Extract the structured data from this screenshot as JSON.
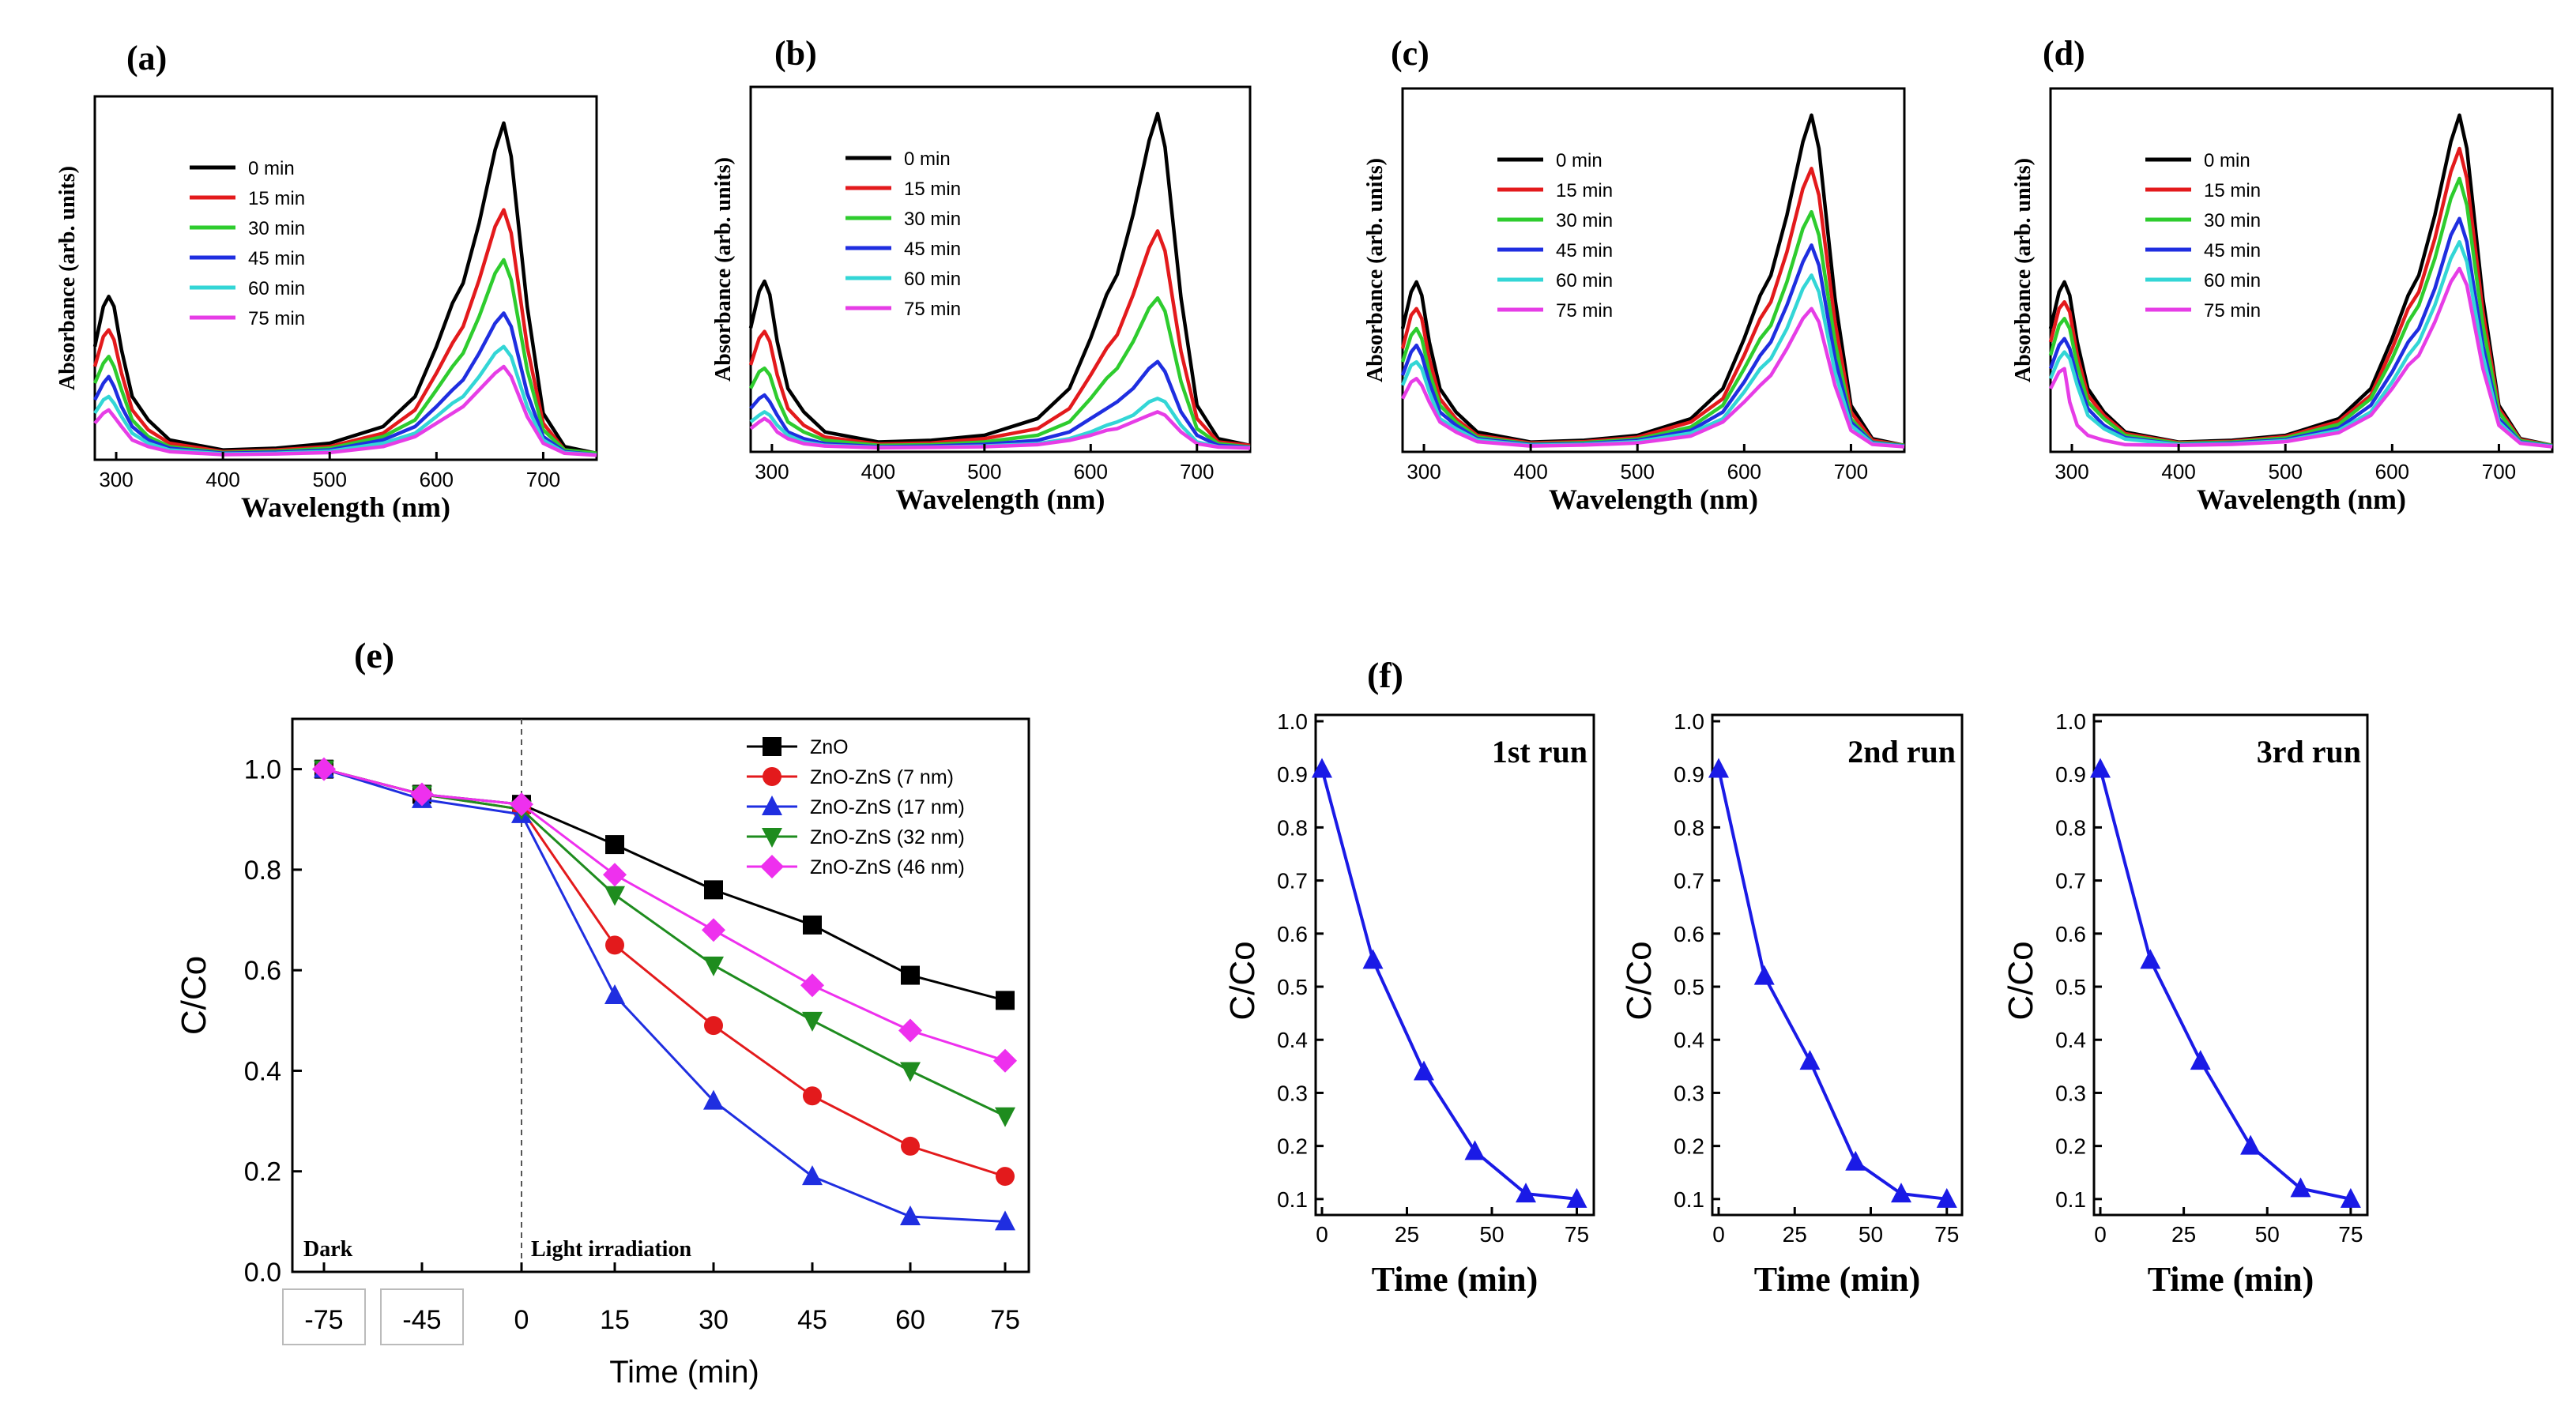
{
  "figure": {
    "colors": {
      "0 min": "#000000",
      "15 min": "#e31a1c",
      "30 min": "#2ecc2e",
      "45 min": "#1f2ee0",
      "60 min": "#33d6d6",
      "75 min": "#e63de6",
      "axis": "#000000",
      "run_series": "#1a1ae6"
    }
  },
  "chart_data": [
    {
      "panel": "(a)",
      "type": "line",
      "xlabel": "Wavelength (nm)",
      "ylabel": "Absorbance (arb. units)",
      "xlim": [
        280,
        750
      ],
      "xticks": [
        "300",
        "400",
        "500",
        "600",
        "700"
      ],
      "legend": [
        "0 min",
        "15 min",
        "30 min",
        "45 min",
        "60 min",
        "75 min"
      ],
      "legend_placement": "upper-left",
      "x": [
        280,
        288,
        293,
        298,
        305,
        315,
        330,
        350,
        400,
        450,
        500,
        550,
        580,
        600,
        615,
        625,
        640,
        655,
        663,
        670,
        685,
        700,
        720,
        750
      ],
      "series": [
        {
          "name": "0 min",
          "values": [
            0.33,
            0.45,
            0.48,
            0.45,
            0.32,
            0.18,
            0.11,
            0.05,
            0.02,
            0.025,
            0.04,
            0.09,
            0.18,
            0.33,
            0.46,
            0.52,
            0.7,
            0.92,
            1.0,
            0.9,
            0.45,
            0.13,
            0.03,
            0.01
          ]
        },
        {
          "name": "15 min",
          "values": [
            0.27,
            0.36,
            0.38,
            0.35,
            0.25,
            0.14,
            0.08,
            0.04,
            0.015,
            0.02,
            0.03,
            0.07,
            0.14,
            0.25,
            0.34,
            0.39,
            0.53,
            0.69,
            0.74,
            0.67,
            0.33,
            0.1,
            0.02,
            0.01
          ]
        },
        {
          "name": "30 min",
          "values": [
            0.22,
            0.28,
            0.3,
            0.27,
            0.2,
            0.11,
            0.06,
            0.03,
            0.012,
            0.016,
            0.025,
            0.06,
            0.11,
            0.2,
            0.27,
            0.31,
            0.42,
            0.55,
            0.59,
            0.53,
            0.26,
            0.08,
            0.02,
            0.01
          ]
        },
        {
          "name": "45 min",
          "values": [
            0.17,
            0.22,
            0.24,
            0.21,
            0.15,
            0.09,
            0.05,
            0.025,
            0.01,
            0.013,
            0.02,
            0.05,
            0.09,
            0.15,
            0.2,
            0.23,
            0.31,
            0.4,
            0.43,
            0.39,
            0.19,
            0.06,
            0.015,
            0.005
          ]
        },
        {
          "name": "60 min",
          "values": [
            0.13,
            0.17,
            0.18,
            0.16,
            0.12,
            0.07,
            0.04,
            0.02,
            0.008,
            0.01,
            0.016,
            0.04,
            0.07,
            0.12,
            0.16,
            0.18,
            0.24,
            0.31,
            0.33,
            0.3,
            0.15,
            0.05,
            0.012,
            0.005
          ]
        },
        {
          "name": "75 min",
          "values": [
            0.1,
            0.13,
            0.14,
            0.12,
            0.09,
            0.05,
            0.03,
            0.015,
            0.006,
            0.008,
            0.012,
            0.03,
            0.06,
            0.1,
            0.13,
            0.15,
            0.2,
            0.25,
            0.27,
            0.24,
            0.12,
            0.04,
            0.01,
            0.004
          ]
        }
      ]
    },
    {
      "panel": "(b)",
      "type": "line",
      "xlabel": "Wavelength (nm)",
      "ylabel": "Absorbance (arb. units)",
      "xlim": [
        280,
        750
      ],
      "xticks": [
        "300",
        "400",
        "500",
        "600",
        "700"
      ],
      "legend": [
        "0 min",
        "15 min",
        "30 min",
        "45 min",
        "60 min",
        "75 min"
      ],
      "legend_placement": "upper-left",
      "x": [
        280,
        288,
        293,
        298,
        305,
        315,
        330,
        350,
        400,
        450,
        500,
        550,
        580,
        600,
        615,
        625,
        640,
        655,
        663,
        670,
        685,
        700,
        720,
        750
      ],
      "series": [
        {
          "name": "0 min",
          "values": [
            0.36,
            0.47,
            0.5,
            0.46,
            0.32,
            0.18,
            0.11,
            0.05,
            0.02,
            0.025,
            0.04,
            0.09,
            0.18,
            0.33,
            0.46,
            0.52,
            0.7,
            0.92,
            1.0,
            0.9,
            0.45,
            0.13,
            0.03,
            0.01
          ]
        },
        {
          "name": "15 min",
          "values": [
            0.25,
            0.33,
            0.35,
            0.32,
            0.22,
            0.12,
            0.07,
            0.035,
            0.014,
            0.017,
            0.03,
            0.06,
            0.12,
            0.22,
            0.3,
            0.34,
            0.46,
            0.6,
            0.65,
            0.59,
            0.29,
            0.09,
            0.02,
            0.01
          ]
        },
        {
          "name": "30 min",
          "values": [
            0.18,
            0.23,
            0.24,
            0.22,
            0.15,
            0.08,
            0.05,
            0.025,
            0.01,
            0.012,
            0.02,
            0.04,
            0.08,
            0.15,
            0.21,
            0.24,
            0.32,
            0.42,
            0.45,
            0.41,
            0.2,
            0.06,
            0.015,
            0.005
          ]
        },
        {
          "name": "45 min",
          "values": [
            0.12,
            0.15,
            0.16,
            0.14,
            0.1,
            0.05,
            0.03,
            0.015,
            0.006,
            0.008,
            0.013,
            0.025,
            0.05,
            0.09,
            0.12,
            0.14,
            0.18,
            0.24,
            0.26,
            0.23,
            0.11,
            0.04,
            0.01,
            0.004
          ]
        },
        {
          "name": "60 min",
          "values": [
            0.08,
            0.1,
            0.11,
            0.1,
            0.07,
            0.04,
            0.02,
            0.01,
            0.004,
            0.005,
            0.008,
            0.015,
            0.03,
            0.05,
            0.07,
            0.08,
            0.1,
            0.14,
            0.15,
            0.14,
            0.07,
            0.02,
            0.006,
            0.003
          ]
        },
        {
          "name": "75 min",
          "values": [
            0.06,
            0.08,
            0.09,
            0.08,
            0.05,
            0.03,
            0.015,
            0.008,
            0.003,
            0.004,
            0.006,
            0.012,
            0.025,
            0.04,
            0.055,
            0.06,
            0.08,
            0.1,
            0.11,
            0.1,
            0.05,
            0.015,
            0.005,
            0.002
          ]
        }
      ]
    },
    {
      "panel": "(c)",
      "type": "line",
      "xlabel": "Wavelength (nm)",
      "ylabel": "Absorbance (arb. units)",
      "xlim": [
        280,
        750
      ],
      "xticks": [
        "300",
        "400",
        "500",
        "600",
        "700"
      ],
      "legend": [
        "0 min",
        "15 min",
        "30 min",
        "45 min",
        "60 min",
        "75 min"
      ],
      "legend_placement": "upper-left",
      "x": [
        280,
        288,
        293,
        298,
        305,
        315,
        330,
        350,
        400,
        450,
        500,
        550,
        580,
        600,
        615,
        625,
        640,
        655,
        663,
        670,
        685,
        700,
        720,
        750
      ],
      "series": [
        {
          "name": "0 min",
          "values": [
            0.36,
            0.47,
            0.5,
            0.46,
            0.32,
            0.18,
            0.11,
            0.05,
            0.02,
            0.025,
            0.04,
            0.09,
            0.18,
            0.33,
            0.46,
            0.52,
            0.7,
            0.92,
            1.0,
            0.9,
            0.45,
            0.13,
            0.03,
            0.01
          ]
        },
        {
          "name": "15 min",
          "values": [
            0.3,
            0.4,
            0.42,
            0.39,
            0.27,
            0.15,
            0.09,
            0.04,
            0.017,
            0.021,
            0.034,
            0.08,
            0.15,
            0.28,
            0.39,
            0.44,
            0.59,
            0.78,
            0.84,
            0.76,
            0.38,
            0.11,
            0.025,
            0.01
          ]
        },
        {
          "name": "30 min",
          "values": [
            0.26,
            0.34,
            0.36,
            0.33,
            0.23,
            0.13,
            0.08,
            0.035,
            0.014,
            0.018,
            0.029,
            0.065,
            0.13,
            0.24,
            0.33,
            0.37,
            0.5,
            0.66,
            0.71,
            0.64,
            0.32,
            0.09,
            0.02,
            0.01
          ]
        },
        {
          "name": "45 min",
          "values": [
            0.22,
            0.29,
            0.31,
            0.28,
            0.2,
            0.11,
            0.07,
            0.03,
            0.012,
            0.015,
            0.025,
            0.055,
            0.11,
            0.2,
            0.28,
            0.32,
            0.43,
            0.56,
            0.61,
            0.55,
            0.27,
            0.08,
            0.018,
            0.008
          ]
        },
        {
          "name": "60 min",
          "values": [
            0.19,
            0.25,
            0.26,
            0.24,
            0.17,
            0.09,
            0.06,
            0.026,
            0.01,
            0.013,
            0.021,
            0.047,
            0.09,
            0.17,
            0.24,
            0.27,
            0.36,
            0.48,
            0.52,
            0.47,
            0.23,
            0.07,
            0.016,
            0.007
          ]
        },
        {
          "name": "75 min",
          "values": [
            0.15,
            0.2,
            0.21,
            0.19,
            0.14,
            0.08,
            0.05,
            0.021,
            0.008,
            0.011,
            0.017,
            0.038,
            0.08,
            0.14,
            0.19,
            0.22,
            0.3,
            0.39,
            0.42,
            0.38,
            0.19,
            0.055,
            0.013,
            0.006
          ]
        }
      ]
    },
    {
      "panel": "(d)",
      "type": "line",
      "xlabel": "Wavelength (nm)",
      "ylabel": "Absorbance (arb. units)",
      "xlim": [
        280,
        750
      ],
      "xticks": [
        "300",
        "400",
        "500",
        "600",
        "700"
      ],
      "legend": [
        "0 min",
        "15 min",
        "30 min",
        "45 min",
        "60 min",
        "75 min"
      ],
      "legend_placement": "upper-left",
      "x": [
        280,
        288,
        293,
        298,
        305,
        315,
        330,
        350,
        400,
        450,
        500,
        550,
        580,
        600,
        615,
        625,
        640,
        655,
        663,
        670,
        685,
        700,
        720,
        750
      ],
      "series": [
        {
          "name": "0 min",
          "values": [
            0.36,
            0.47,
            0.5,
            0.46,
            0.32,
            0.18,
            0.11,
            0.05,
            0.02,
            0.025,
            0.04,
            0.09,
            0.18,
            0.33,
            0.46,
            0.52,
            0.7,
            0.92,
            1.0,
            0.9,
            0.45,
            0.13,
            0.03,
            0.01
          ]
        },
        {
          "name": "15 min",
          "values": [
            0.32,
            0.42,
            0.44,
            0.41,
            0.28,
            0.16,
            0.1,
            0.045,
            0.018,
            0.022,
            0.036,
            0.082,
            0.16,
            0.3,
            0.42,
            0.47,
            0.63,
            0.83,
            0.9,
            0.81,
            0.41,
            0.12,
            0.027,
            0.01
          ]
        },
        {
          "name": "30 min",
          "values": [
            0.28,
            0.37,
            0.39,
            0.36,
            0.25,
            0.14,
            0.09,
            0.04,
            0.016,
            0.02,
            0.032,
            0.073,
            0.15,
            0.27,
            0.38,
            0.43,
            0.57,
            0.75,
            0.81,
            0.73,
            0.37,
            0.11,
            0.024,
            0.01
          ]
        },
        {
          "name": "45 min",
          "values": [
            0.24,
            0.31,
            0.33,
            0.3,
            0.21,
            0.12,
            0.07,
            0.033,
            0.013,
            0.017,
            0.027,
            0.062,
            0.13,
            0.23,
            0.32,
            0.36,
            0.48,
            0.64,
            0.69,
            0.62,
            0.31,
            0.09,
            0.02,
            0.008
          ]
        },
        {
          "name": "60 min",
          "values": [
            0.21,
            0.27,
            0.29,
            0.27,
            0.19,
            0.1,
            0.06,
            0.029,
            0.012,
            0.015,
            0.024,
            0.055,
            0.11,
            0.2,
            0.28,
            0.32,
            0.43,
            0.57,
            0.62,
            0.56,
            0.28,
            0.08,
            0.018,
            0.007
          ]
        },
        {
          "name": "75 min",
          "values": [
            0.18,
            0.23,
            0.24,
            0.14,
            0.07,
            0.04,
            0.025,
            0.012,
            0.01,
            0.013,
            0.021,
            0.048,
            0.1,
            0.18,
            0.25,
            0.28,
            0.38,
            0.5,
            0.54,
            0.49,
            0.24,
            0.07,
            0.016,
            0.006
          ]
        }
      ]
    },
    {
      "panel": "(e)",
      "type": "line",
      "xlabel": "Time (min)",
      "ylabel": "C/Co",
      "ylim": [
        0.0,
        1.1
      ],
      "yticks": [
        "0.0",
        "0.2",
        "0.4",
        "0.6",
        "0.8",
        "1.0"
      ],
      "categories": [
        "-75",
        "-45",
        "0",
        "15",
        "30",
        "45",
        "60",
        "75"
      ],
      "annotations": [
        "Dark",
        "Light irradiation"
      ],
      "legend_placement": "top-right",
      "series": [
        {
          "name": "ZnO",
          "color": "#000000",
          "marker": "square",
          "values": [
            1.0,
            0.95,
            0.93,
            0.85,
            0.76,
            0.69,
            0.59,
            0.54
          ]
        },
        {
          "name": "ZnO-ZnS (7 nm)",
          "color": "#e31a1c",
          "marker": "circle",
          "values": [
            1.0,
            0.95,
            0.92,
            0.65,
            0.49,
            0.35,
            0.25,
            0.19
          ]
        },
        {
          "name": "ZnO-ZnS (17 nm)",
          "color": "#1f2ee0",
          "marker": "triangle-up",
          "values": [
            1.0,
            0.94,
            0.91,
            0.55,
            0.34,
            0.19,
            0.11,
            0.1
          ]
        },
        {
          "name": "ZnO-ZnS (32 nm)",
          "color": "#1e8c1e",
          "marker": "triangle-down",
          "values": [
            1.0,
            0.95,
            0.92,
            0.75,
            0.61,
            0.5,
            0.4,
            0.31
          ]
        },
        {
          "name": "ZnO-ZnS (46 nm)",
          "color": "#ee30ee",
          "marker": "diamond",
          "values": [
            1.0,
            0.95,
            0.93,
            0.79,
            0.68,
            0.57,
            0.48,
            0.42
          ]
        }
      ]
    },
    {
      "panel": "(f)",
      "type": "line",
      "subplots": [
        {
          "title": "1st run",
          "xlabel": "Time (min)",
          "ylabel": "C/Co",
          "x": [
            0,
            15,
            30,
            45,
            60,
            75
          ],
          "values": [
            0.91,
            0.55,
            0.34,
            0.19,
            0.11,
            0.1
          ]
        },
        {
          "title": "2nd run",
          "xlabel": "Time (min)",
          "ylabel": "C/Co",
          "x": [
            0,
            15,
            30,
            45,
            60,
            75
          ],
          "values": [
            0.91,
            0.52,
            0.36,
            0.17,
            0.11,
            0.1
          ]
        },
        {
          "title": "3rd run",
          "xlabel": "Time (min)",
          "ylabel": "C/Co",
          "x": [
            0,
            15,
            30,
            45,
            60,
            75
          ],
          "values": [
            0.91,
            0.55,
            0.36,
            0.2,
            0.12,
            0.1
          ]
        }
      ],
      "xlim": [
        0,
        80
      ],
      "ylim": [
        0.07,
        1.0
      ],
      "xticks": [
        "0",
        "25",
        "50",
        "75"
      ],
      "yticks": [
        "0.1",
        "0.2",
        "0.3",
        "0.4",
        "0.5",
        "0.6",
        "0.7",
        "0.8",
        "0.9",
        "1.0"
      ]
    }
  ]
}
